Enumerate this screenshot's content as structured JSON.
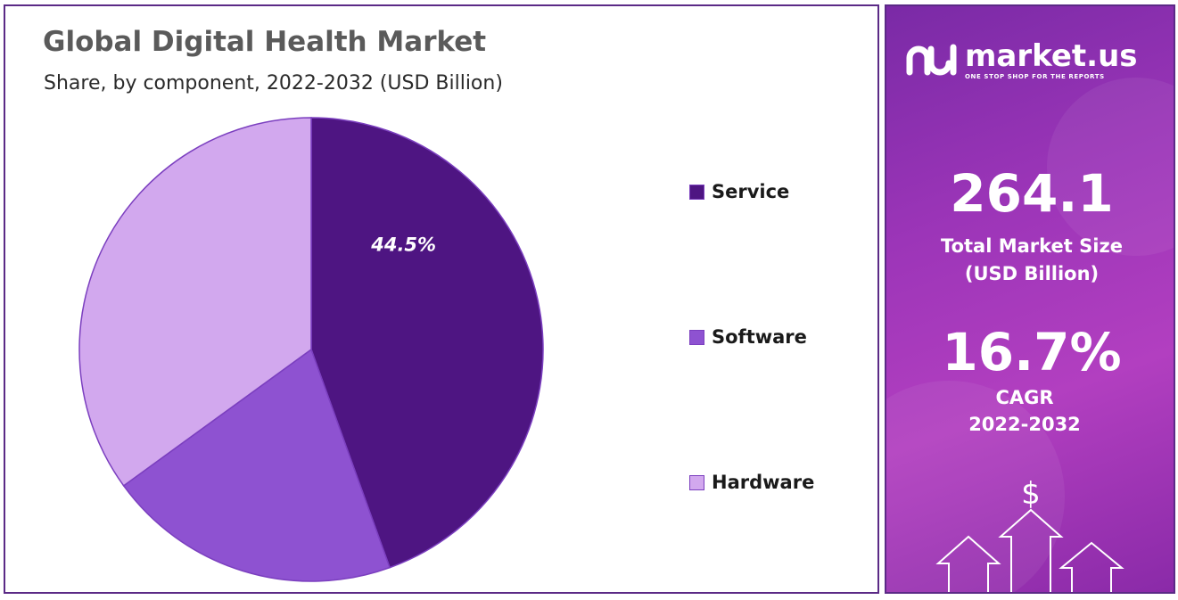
{
  "chart_data": {
    "type": "pie",
    "title": "Global Digital Health Market",
    "subtitle": "Share, by component, 2022-2032  (USD Billion)",
    "slices": [
      {
        "name": "Service",
        "value": 44.5,
        "label": "44.5%",
        "color": "#4e1582"
      },
      {
        "name": "Software",
        "value": 20.5,
        "label": "",
        "color": "#8e52d1"
      },
      {
        "name": "Hardware",
        "value": 35.0,
        "label": "",
        "color": "#d2a8ee"
      }
    ],
    "legend_position": "right"
  },
  "side_panel": {
    "brand_name": "market.us",
    "brand_tagline": "ONE STOP SHOP FOR THE REPORTS",
    "market_size_value": "264.1",
    "market_size_label_line1": "Total Market Size",
    "market_size_label_line2": "(USD Billion)",
    "cagr_value": "16.7%",
    "cagr_label_line1": "CAGR",
    "cagr_label_line2": "2022-2032",
    "dollar_symbol": "$"
  },
  "colors": {
    "panel_border": "#5b2a86",
    "title_text": "#5a5a5a"
  }
}
